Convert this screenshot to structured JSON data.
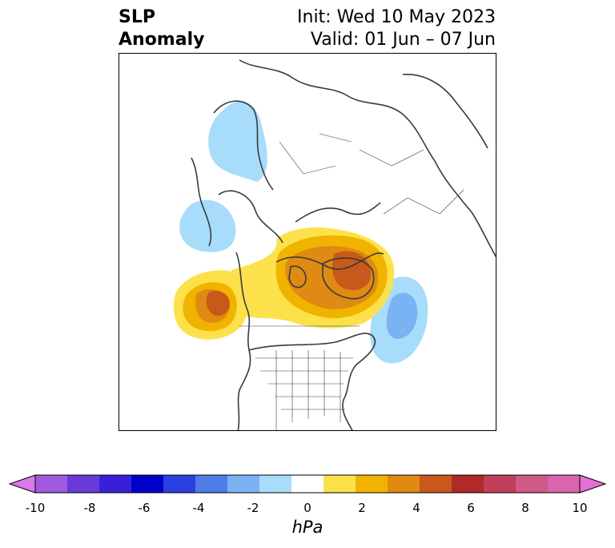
{
  "title": {
    "left_line1": "SLP",
    "left_line2": "Anomaly",
    "init": "Init: Wed 10 May 2023",
    "valid": "Valid: 01 Jun – 07 Jun"
  },
  "map": {
    "field": "SLP anomaly",
    "projection": "north-polar stereographic",
    "features": [
      {
        "name": "positive-anomaly-arctic-greenland",
        "peak_hpa": 5
      },
      {
        "name": "positive-anomaly-ne-pacific",
        "peak_hpa": 5
      },
      {
        "name": "negative-anomaly-north-atlantic",
        "peak_hpa": -3
      },
      {
        "name": "negative-anomaly-scandinavia",
        "peak_hpa": -2
      },
      {
        "name": "negative-anomaly-bering-sea",
        "peak_hpa": -2
      }
    ]
  },
  "colorbar": {
    "unit_label": "hPa",
    "tick_labels": [
      "-10",
      "-8",
      "-6",
      "-4",
      "-2",
      "0",
      "2",
      "4",
      "6",
      "8",
      "10"
    ],
    "extend": "both",
    "colors": [
      "#d97aea",
      "#a05ae0",
      "#6a3ad8",
      "#3a1fd8",
      "#0000cc",
      "#2a3fe0",
      "#4f7de8",
      "#7ab3f3",
      "#a8dcfb",
      "#ffffff",
      "#fde14b",
      "#f0b400",
      "#df8a12",
      "#c9581b",
      "#b02a27",
      "#c13f5a",
      "#cf5a85",
      "#da64ad",
      "#e56fd6"
    ]
  }
}
